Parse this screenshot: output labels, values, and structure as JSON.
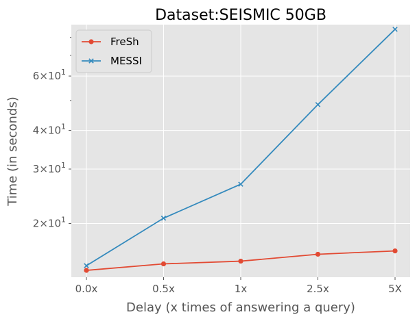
{
  "chart_data": {
    "type": "line",
    "title": "Dataset:SEISMIC 50GB",
    "xlabel": "Delay (x times of answering a query)",
    "ylabel": "Time (in seconds)",
    "categories": [
      "0.0x",
      "0.5x",
      "1x",
      "2.5x",
      "5X"
    ],
    "yscale": "log",
    "ylim": [
      13.4,
      88
    ],
    "y_major_ticks": [
      {
        "value": 20,
        "label": "2×10",
        "exp": "1"
      },
      {
        "value": 30,
        "label": "3×10",
        "exp": "1"
      },
      {
        "value": 40,
        "label": "4×10",
        "exp": "1"
      },
      {
        "value": 60,
        "label": "6×10",
        "exp": "1"
      }
    ],
    "y_minor_ticks": [
      50,
      70,
      80
    ],
    "grid": true,
    "legend_position": "top-left",
    "series": [
      {
        "name": "FreSh",
        "marker": "circle",
        "color": "#E24A33",
        "values": [
          14.1,
          14.8,
          15.1,
          15.9,
          16.3
        ]
      },
      {
        "name": "MESSI",
        "marker": "x",
        "color": "#348ABD",
        "values": [
          14.6,
          20.8,
          26.8,
          48.5,
          85.0
        ]
      }
    ]
  }
}
